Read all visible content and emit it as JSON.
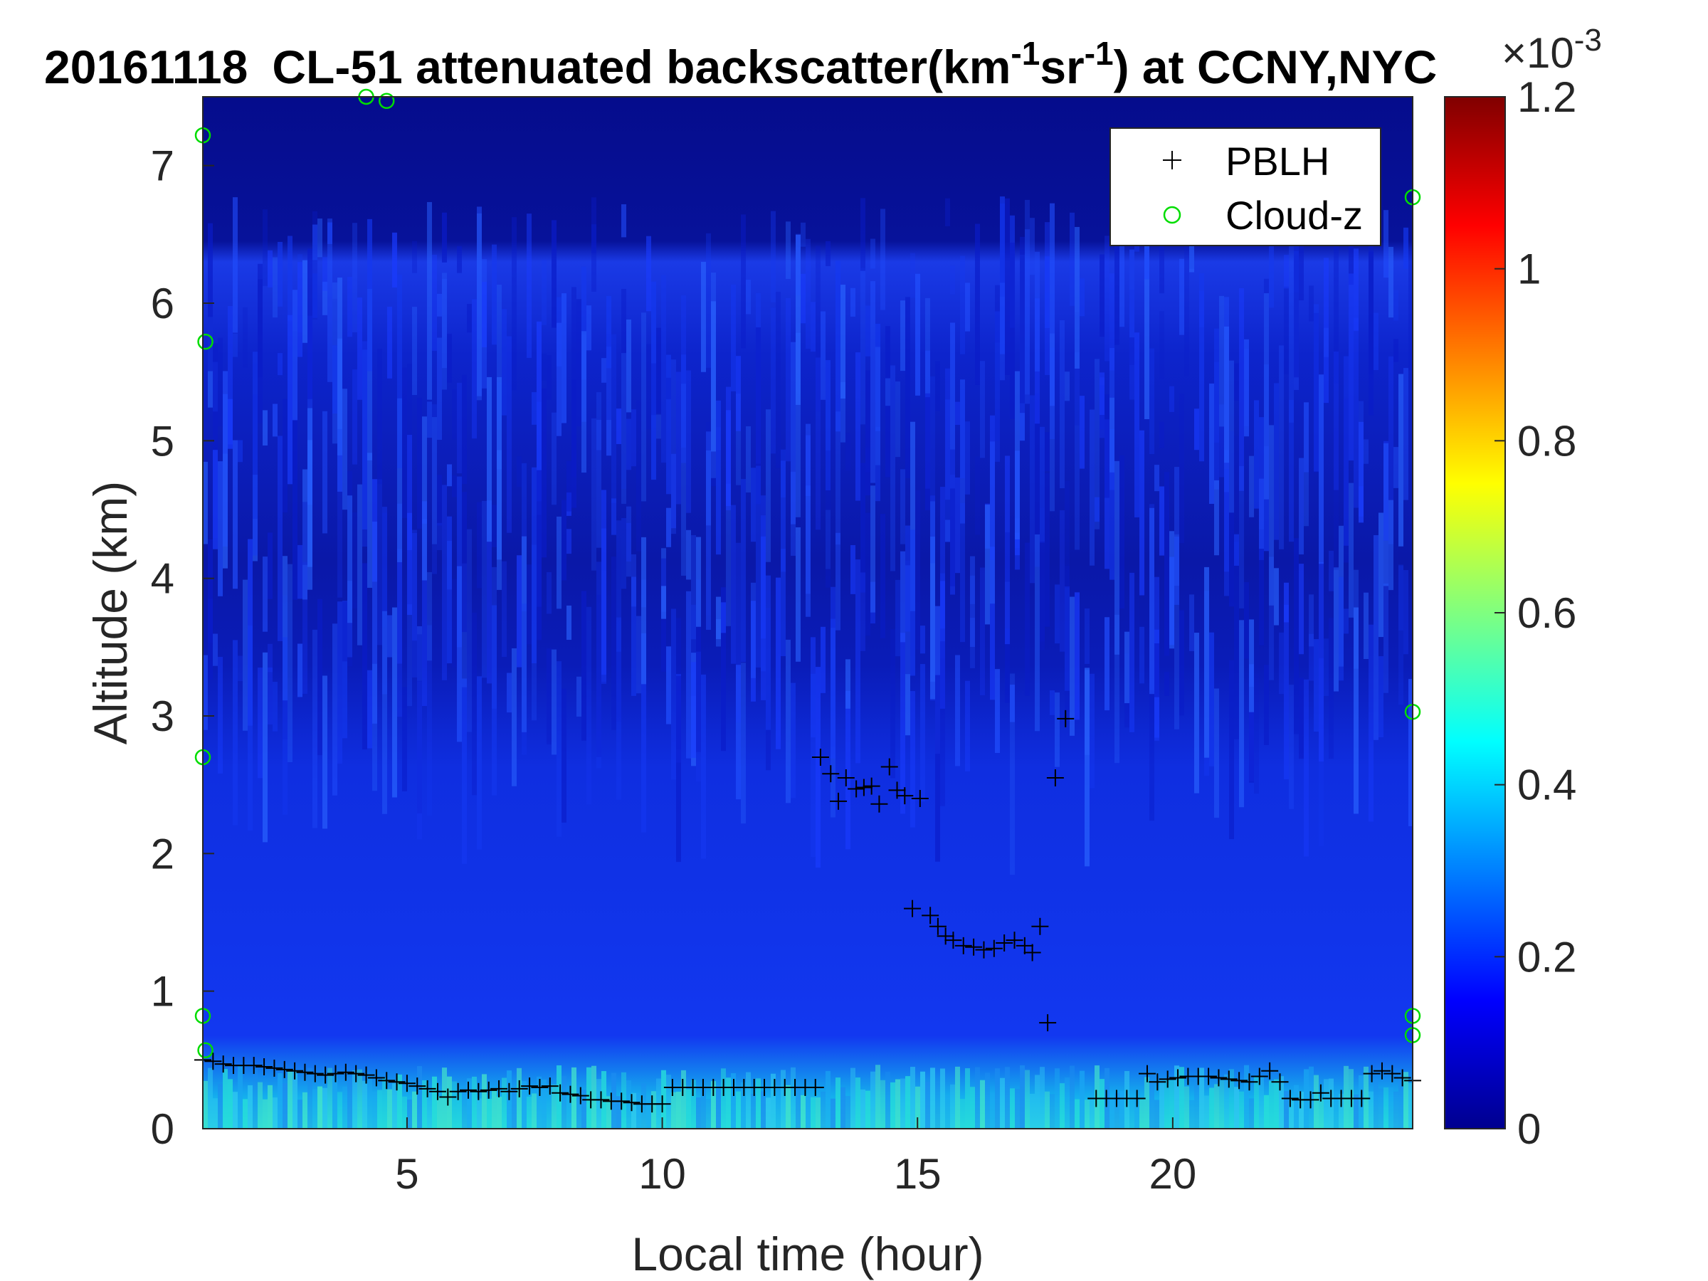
{
  "chart_data": {
    "type": "heatmap",
    "title": {
      "date": "20161118",
      "main": "CL-51 attenuated backscatter(km",
      "sup1": "-1",
      "mid": "sr",
      "sup2": "-1",
      "end": ") at CCNY,NYC"
    },
    "xlabel": "Local time (hour)",
    "ylabel": "Altitude (km)",
    "xlim": [
      1,
      24.7
    ],
    "ylim": [
      0,
      7.5
    ],
    "xticks": [
      5,
      10,
      15,
      20
    ],
    "yticks": [
      0,
      1,
      2,
      3,
      4,
      5,
      6,
      7
    ],
    "colorbar": {
      "colormap": "jet",
      "clim": [
        0,
        1.2
      ],
      "ticks": [
        0,
        0.2,
        0.4,
        0.6,
        0.8,
        1,
        1.2
      ],
      "tick_labels": [
        "0",
        "0.2",
        "0.4",
        "0.6",
        "0.8",
        "1",
        "1.2"
      ],
      "exponent_base": "×10",
      "exponent": "-3",
      "colors": [
        "#00008f",
        "#0000ff",
        "#00ffff",
        "#ffff00",
        "#ff0000",
        "#800000"
      ]
    },
    "legend": {
      "placement": "top-right",
      "entries": [
        {
          "label": "PBLH",
          "marker": "+",
          "color": "#000000"
        },
        {
          "label": "Cloud-z",
          "marker": "o",
          "color": "#00dd00"
        }
      ]
    },
    "series": [
      {
        "name": "PBLH",
        "marker": "+",
        "color": "#000000",
        "points": [
          [
            1.0,
            0.5
          ],
          [
            1.2,
            0.49
          ],
          [
            1.4,
            0.47
          ],
          [
            1.6,
            0.46
          ],
          [
            1.8,
            0.46
          ],
          [
            2.0,
            0.46
          ],
          [
            2.2,
            0.45
          ],
          [
            2.4,
            0.44
          ],
          [
            2.6,
            0.43
          ],
          [
            2.8,
            0.42
          ],
          [
            3.0,
            0.41
          ],
          [
            3.2,
            0.4
          ],
          [
            3.4,
            0.39
          ],
          [
            3.6,
            0.4
          ],
          [
            3.8,
            0.41
          ],
          [
            4.0,
            0.4
          ],
          [
            4.2,
            0.39
          ],
          [
            4.4,
            0.37
          ],
          [
            4.6,
            0.35
          ],
          [
            4.8,
            0.34
          ],
          [
            5.0,
            0.33
          ],
          [
            5.2,
            0.31
          ],
          [
            5.4,
            0.29
          ],
          [
            5.6,
            0.27
          ],
          [
            5.8,
            0.23
          ],
          [
            6.0,
            0.27
          ],
          [
            6.2,
            0.28
          ],
          [
            6.4,
            0.27
          ],
          [
            6.6,
            0.28
          ],
          [
            6.8,
            0.29
          ],
          [
            7.0,
            0.27
          ],
          [
            7.2,
            0.29
          ],
          [
            7.4,
            0.31
          ],
          [
            7.6,
            0.3
          ],
          [
            7.8,
            0.31
          ],
          [
            8.0,
            0.26
          ],
          [
            8.2,
            0.25
          ],
          [
            8.4,
            0.24
          ],
          [
            8.6,
            0.21
          ],
          [
            8.8,
            0.21
          ],
          [
            9.0,
            0.2
          ],
          [
            9.2,
            0.2
          ],
          [
            9.4,
            0.19
          ],
          [
            9.6,
            0.18
          ],
          [
            9.8,
            0.18
          ],
          [
            10.0,
            0.18
          ],
          [
            10.2,
            0.3
          ],
          [
            10.4,
            0.3
          ],
          [
            10.6,
            0.3
          ],
          [
            10.8,
            0.3
          ],
          [
            11.0,
            0.3
          ],
          [
            11.2,
            0.3
          ],
          [
            11.4,
            0.3
          ],
          [
            11.6,
            0.3
          ],
          [
            11.8,
            0.3
          ],
          [
            12.0,
            0.3
          ],
          [
            12.2,
            0.3
          ],
          [
            12.4,
            0.3
          ],
          [
            12.6,
            0.3
          ],
          [
            12.8,
            0.3
          ],
          [
            13.0,
            0.3
          ],
          [
            13.1,
            2.7
          ],
          [
            13.3,
            2.58
          ],
          [
            13.45,
            2.38
          ],
          [
            13.6,
            2.55
          ],
          [
            13.8,
            2.47
          ],
          [
            13.95,
            2.48
          ],
          [
            14.1,
            2.49
          ],
          [
            14.25,
            2.36
          ],
          [
            14.45,
            2.63
          ],
          [
            14.6,
            2.46
          ],
          [
            14.75,
            2.42
          ],
          [
            15.05,
            2.4
          ],
          [
            14.9,
            1.6
          ],
          [
            15.25,
            1.55
          ],
          [
            15.4,
            1.47
          ],
          [
            15.55,
            1.4
          ],
          [
            15.7,
            1.37
          ],
          [
            15.9,
            1.33
          ],
          [
            16.1,
            1.32
          ],
          [
            16.3,
            1.3
          ],
          [
            16.5,
            1.31
          ],
          [
            16.7,
            1.35
          ],
          [
            16.9,
            1.37
          ],
          [
            17.1,
            1.33
          ],
          [
            17.25,
            1.28
          ],
          [
            17.4,
            1.47
          ],
          [
            17.55,
            0.77
          ],
          [
            17.7,
            2.55
          ],
          [
            17.9,
            2.98
          ],
          [
            18.5,
            0.22
          ],
          [
            18.7,
            0.22
          ],
          [
            18.9,
            0.22
          ],
          [
            19.1,
            0.22
          ],
          [
            19.3,
            0.22
          ],
          [
            19.5,
            0.4
          ],
          [
            19.7,
            0.34
          ],
          [
            19.9,
            0.36
          ],
          [
            20.1,
            0.37
          ],
          [
            20.3,
            0.38
          ],
          [
            20.5,
            0.38
          ],
          [
            20.7,
            0.38
          ],
          [
            20.9,
            0.37
          ],
          [
            21.1,
            0.36
          ],
          [
            21.3,
            0.35
          ],
          [
            21.5,
            0.34
          ],
          [
            21.7,
            0.38
          ],
          [
            21.9,
            0.42
          ],
          [
            22.1,
            0.34
          ],
          [
            22.3,
            0.22
          ],
          [
            22.5,
            0.21
          ],
          [
            22.7,
            0.21
          ],
          [
            22.9,
            0.26
          ],
          [
            23.1,
            0.22
          ],
          [
            23.3,
            0.22
          ],
          [
            23.5,
            0.22
          ],
          [
            23.7,
            0.22
          ],
          [
            23.9,
            0.4
          ],
          [
            24.1,
            0.42
          ],
          [
            24.3,
            0.4
          ],
          [
            24.5,
            0.37
          ],
          [
            24.7,
            0.35
          ]
        ]
      },
      {
        "name": "Cloud-z",
        "marker": "o",
        "color": "#00dd00",
        "points": [
          [
            1.0,
            7.22
          ],
          [
            1.05,
            5.72
          ],
          [
            1.0,
            2.7
          ],
          [
            1.0,
            0.82
          ],
          [
            1.05,
            0.57
          ],
          [
            4.2,
            7.5
          ],
          [
            4.6,
            7.47
          ],
          [
            24.7,
            6.77
          ],
          [
            24.7,
            3.03
          ],
          [
            24.7,
            0.82
          ],
          [
            24.7,
            0.68
          ]
        ]
      }
    ]
  }
}
